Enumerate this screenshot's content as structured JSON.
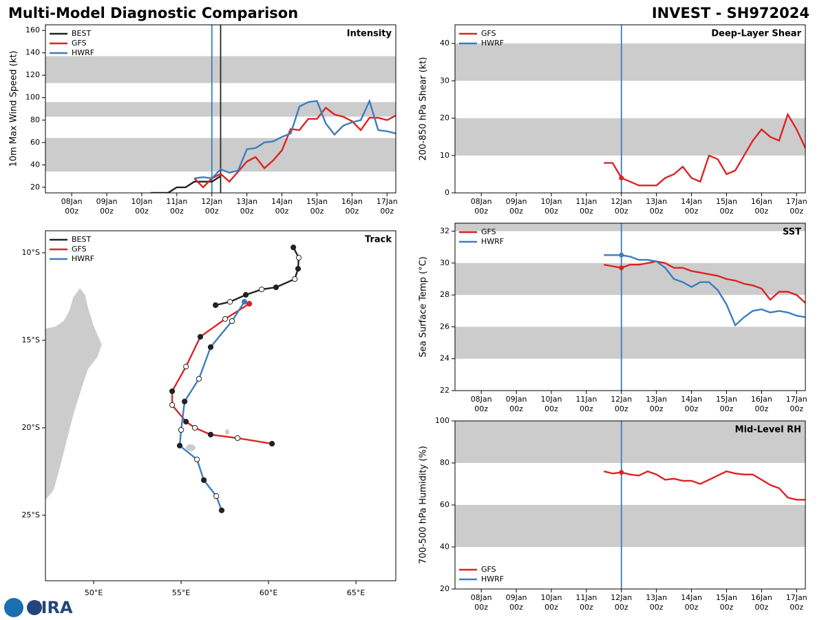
{
  "title": "Multi-Model Diagnostic Comparison",
  "storm": "INVEST - SH972024",
  "logo": "CIRA",
  "chart_data": [
    {
      "type": "line",
      "title": "Intensity",
      "ylabel": "10m Max Wind Speed (kt)",
      "legend": "upper left",
      "x": [
        "10Jan 06z",
        "10Jan 12z",
        "10Jan 18z",
        "11Jan 00z",
        "11Jan 06z",
        "11Jan 12z",
        "11Jan 18z",
        "12Jan 00z",
        "12Jan 06z",
        "12Jan 12z",
        "12Jan 18z",
        "13Jan 00z",
        "13Jan 06z",
        "13Jan 12z",
        "13Jan 18z",
        "14Jan 00z",
        "14Jan 06z",
        "14Jan 12z",
        "14Jan 18z",
        "15Jan 00z",
        "15Jan 06z",
        "15Jan 12z",
        "15Jan 18z",
        "16Jan 00z",
        "16Jan 06z",
        "16Jan 12z",
        "16Jan 18z",
        "17Jan 00z",
        "17Jan 06z"
      ],
      "series": [
        {
          "name": "BEST",
          "color": "#222222",
          "values": [
            15,
            15,
            15,
            20,
            20,
            25,
            25,
            25,
            30,
            null,
            null,
            null,
            null,
            null,
            null,
            null,
            null,
            null,
            null,
            null,
            null,
            null,
            null,
            null,
            null,
            null,
            null,
            null,
            null
          ]
        },
        {
          "name": "GFS",
          "color": "#dd2222",
          "values": [
            null,
            null,
            null,
            null,
            null,
            28,
            20,
            28,
            32,
            25,
            34,
            43,
            47,
            37,
            44,
            53,
            72,
            71,
            81,
            81,
            91,
            85,
            83,
            79,
            71,
            82,
            82,
            80,
            84
          ]
        },
        {
          "name": "HWRF",
          "color": "#3a7dbf",
          "values": [
            null,
            null,
            null,
            null,
            null,
            28,
            29,
            28,
            36,
            33,
            35,
            54,
            55,
            60,
            61,
            65,
            68,
            92,
            96,
            97,
            77,
            67,
            75,
            78,
            80,
            97,
            71,
            70,
            68
          ]
        }
      ],
      "xlim": [
        "07Jan 06z",
        "17Jan 06z"
      ],
      "xticks": [
        "08Jan 00z",
        "09Jan 00z",
        "10Jan 00z",
        "11Jan 00z",
        "12Jan 00z",
        "13Jan 00z",
        "14Jan 00z",
        "15Jan 00z",
        "16Jan 00z",
        "17Jan 00z"
      ],
      "ylim": [
        15,
        165
      ],
      "yticks": [
        20,
        40,
        60,
        80,
        100,
        120,
        140,
        160
      ],
      "bands": [
        [
          34,
          64
        ],
        [
          83,
          96
        ],
        [
          113,
          137
        ]
      ],
      "vlines": [
        {
          "x": "12Jan 00z",
          "color": "#3a7dbf"
        },
        {
          "x": "12Jan 06z",
          "color": "#222222"
        }
      ]
    },
    {
      "type": "track",
      "title": "Track",
      "legend": "upper left",
      "series": [
        {
          "name": "BEST",
          "color": "#222222",
          "x": [
            61.42,
            61.73,
            61.69,
            61.5,
            60.43,
            59.61,
            58.7,
            57.8,
            56.97
          ],
          "values": [
            -9.69,
            -10.28,
            -10.91,
            -11.5,
            -11.97,
            -12.09,
            -12.4,
            -12.8,
            -12.99
          ]
        },
        {
          "name": "GFS",
          "color": "#dd2222",
          "x": [
            58.9,
            57.52,
            56.1,
            55.28,
            54.49,
            54.49,
            55.28,
            55.79,
            56.69,
            58.23,
            60.2
          ],
          "values": [
            -12.91,
            -13.78,
            -14.8,
            -16.5,
            -17.91,
            -18.7,
            -19.65,
            -20.0,
            -20.39,
            -20.59,
            -20.91
          ]
        },
        {
          "name": "HWRF",
          "color": "#3a7dbf",
          "x": [
            58.62,
            57.91,
            56.69,
            56.02,
            55.2,
            55.0,
            54.92,
            55.91,
            56.3,
            57.01,
            57.32
          ],
          "values": [
            -12.8,
            -13.9,
            -15.39,
            -17.2,
            -18.5,
            -20.12,
            -21.02,
            -21.81,
            -22.99,
            -23.9,
            -24.72
          ]
        }
      ],
      "xlim": [
        47.24,
        67.28
      ],
      "xticks": [
        {
          "value": 50,
          "label": "50°E"
        },
        {
          "value": 55,
          "label": "55°E"
        },
        {
          "value": 60,
          "label": "60°E"
        },
        {
          "value": 65,
          "label": "65°E"
        }
      ],
      "ylim": [
        -28.74,
        -8.74
      ],
      "yticks": [
        {
          "value": -10,
          "label": "10°S"
        },
        {
          "value": -15,
          "label": "15°S"
        },
        {
          "value": -20,
          "label": "20°S"
        },
        {
          "value": -25,
          "label": "25°S"
        }
      ]
    },
    {
      "type": "line",
      "title": "Deep-Layer Shear",
      "ylabel": "200-850 hPa Shear (kt)",
      "legend": "upper left",
      "line_markers": true,
      "x": [
        "11Jan 12z",
        "11Jan 18z",
        "12Jan 00z",
        "12Jan 06z",
        "12Jan 12z",
        "12Jan 18z",
        "13Jan 00z",
        "13Jan 06z",
        "13Jan 12z",
        "13Jan 18z",
        "14Jan 00z",
        "14Jan 06z",
        "14Jan 12z",
        "14Jan 18z",
        "15Jan 00z",
        "15Jan 06z",
        "15Jan 12z",
        "15Jan 18z",
        "16Jan 00z",
        "16Jan 06z",
        "16Jan 12z",
        "16Jan 18z",
        "17Jan 00z",
        "17Jan 06z"
      ],
      "series": [
        {
          "name": "GFS",
          "color": "#dd2222",
          "values": [
            8,
            8,
            4,
            3,
            2,
            2,
            2,
            4,
            5,
            7,
            4,
            3,
            10,
            9,
            5,
            6,
            10,
            14,
            17,
            15,
            14,
            21,
            17,
            12
          ]
        },
        {
          "name": "HWRF",
          "color": "#3a7dbf",
          "values": [
            null,
            null,
            null,
            null,
            null,
            null,
            null,
            null,
            null,
            null,
            null,
            null,
            null,
            null,
            null,
            null,
            null,
            null,
            null,
            null,
            null,
            null,
            null,
            null
          ]
        }
      ],
      "xlim": [
        "07Jan 06z",
        "17Jan 06z"
      ],
      "xticks": [
        "08Jan 00z",
        "09Jan 00z",
        "10Jan 00z",
        "11Jan 00z",
        "12Jan 00z",
        "13Jan 00z",
        "14Jan 00z",
        "15Jan 00z",
        "16Jan 00z",
        "17Jan 00z"
      ],
      "ylim": [
        0,
        45
      ],
      "yticks": [
        0,
        10,
        20,
        30,
        40
      ],
      "bands": [
        [
          10,
          20
        ],
        [
          30,
          40
        ]
      ],
      "vlines": [
        {
          "x": "12Jan 00z",
          "color": "#3a7dbf"
        }
      ]
    },
    {
      "type": "line",
      "title": "SST",
      "ylabel": "Sea Surface Temp (°C)",
      "legend": "upper left",
      "line_markers": true,
      "x": [
        "11Jan 12z",
        "11Jan 18z",
        "12Jan 00z",
        "12Jan 06z",
        "12Jan 12z",
        "12Jan 18z",
        "13Jan 00z",
        "13Jan 06z",
        "13Jan 12z",
        "13Jan 18z",
        "14Jan 00z",
        "14Jan 06z",
        "14Jan 12z",
        "14Jan 18z",
        "15Jan 00z",
        "15Jan 06z",
        "15Jan 12z",
        "15Jan 18z",
        "16Jan 00z",
        "16Jan 06z",
        "16Jan 12z",
        "16Jan 18z",
        "17Jan 00z",
        "17Jan 06z"
      ],
      "series": [
        {
          "name": "GFS",
          "color": "#dd2222",
          "values": [
            29.9,
            29.8,
            29.7,
            29.9,
            29.9,
            30.0,
            30.1,
            30.0,
            29.7,
            29.7,
            29.5,
            29.4,
            29.3,
            29.2,
            29.0,
            28.9,
            28.7,
            28.6,
            28.4,
            27.7,
            28.2,
            28.2,
            28.0,
            27.5
          ]
        },
        {
          "name": "HWRF",
          "color": "#3a7dbf",
          "values": [
            30.5,
            30.5,
            30.5,
            30.4,
            30.2,
            30.2,
            30.1,
            29.7,
            29.0,
            28.8,
            28.5,
            28.8,
            28.8,
            28.3,
            27.4,
            26.1,
            26.6,
            27.0,
            27.1,
            26.9,
            27.0,
            26.9,
            26.7,
            26.6
          ]
        }
      ],
      "xlim": [
        "07Jan 06z",
        "17Jan 06z"
      ],
      "xticks": [
        "08Jan 00z",
        "09Jan 00z",
        "10Jan 00z",
        "11Jan 00z",
        "12Jan 00z",
        "13Jan 00z",
        "14Jan 00z",
        "15Jan 00z",
        "16Jan 00z",
        "17Jan 00z"
      ],
      "ylim": [
        22,
        32.5
      ],
      "yticks": [
        22,
        24,
        26,
        28,
        30,
        32
      ],
      "bands": [
        [
          24,
          26
        ],
        [
          28,
          30
        ],
        [
          32,
          34
        ]
      ],
      "vlines": [
        {
          "x": "12Jan 00z",
          "color": "#3a7dbf"
        }
      ]
    },
    {
      "type": "line",
      "title": "Mid-Level RH",
      "ylabel": "700-500 hPa Humidity (%)",
      "legend": "lower left",
      "line_markers": true,
      "x": [
        "11Jan 12z",
        "11Jan 18z",
        "12Jan 00z",
        "12Jan 06z",
        "12Jan 12z",
        "12Jan 18z",
        "13Jan 00z",
        "13Jan 06z",
        "13Jan 12z",
        "13Jan 18z",
        "14Jan 00z",
        "14Jan 06z",
        "14Jan 12z",
        "14Jan 18z",
        "15Jan 00z",
        "15Jan 06z",
        "15Jan 12z",
        "15Jan 18z",
        "16Jan 00z",
        "16Jan 06z",
        "16Jan 12z",
        "16Jan 18z",
        "17Jan 00z",
        "17Jan 06z"
      ],
      "series": [
        {
          "name": "GFS",
          "color": "#dd2222",
          "values": [
            76,
            75,
            75.5,
            74.5,
            74,
            76,
            74.5,
            72,
            72.5,
            71.5,
            71.5,
            70,
            72,
            74,
            76,
            75,
            74.5,
            74.5,
            72,
            69.5,
            68,
            63.5,
            62.5,
            62.5
          ]
        },
        {
          "name": "HWRF",
          "color": "#3a7dbf",
          "values": [
            null,
            null,
            null,
            null,
            null,
            null,
            null,
            null,
            null,
            null,
            null,
            null,
            null,
            null,
            null,
            null,
            null,
            null,
            null,
            null,
            null,
            null,
            null,
            null
          ]
        }
      ],
      "xlim": [
        "07Jan 06z",
        "17Jan 06z"
      ],
      "xticks": [
        "08Jan 00z",
        "09Jan 00z",
        "10Jan 00z",
        "11Jan 00z",
        "12Jan 00z",
        "13Jan 00z",
        "14Jan 00z",
        "15Jan 00z",
        "16Jan 00z",
        "17Jan 00z"
      ],
      "ylim": [
        20,
        100
      ],
      "yticks": [
        20,
        40,
        60,
        80,
        100
      ],
      "bands": [
        [
          40,
          60
        ],
        [
          80,
          100
        ]
      ],
      "vlines": [
        {
          "x": "12Jan 00z",
          "color": "#3a7dbf"
        }
      ]
    }
  ]
}
